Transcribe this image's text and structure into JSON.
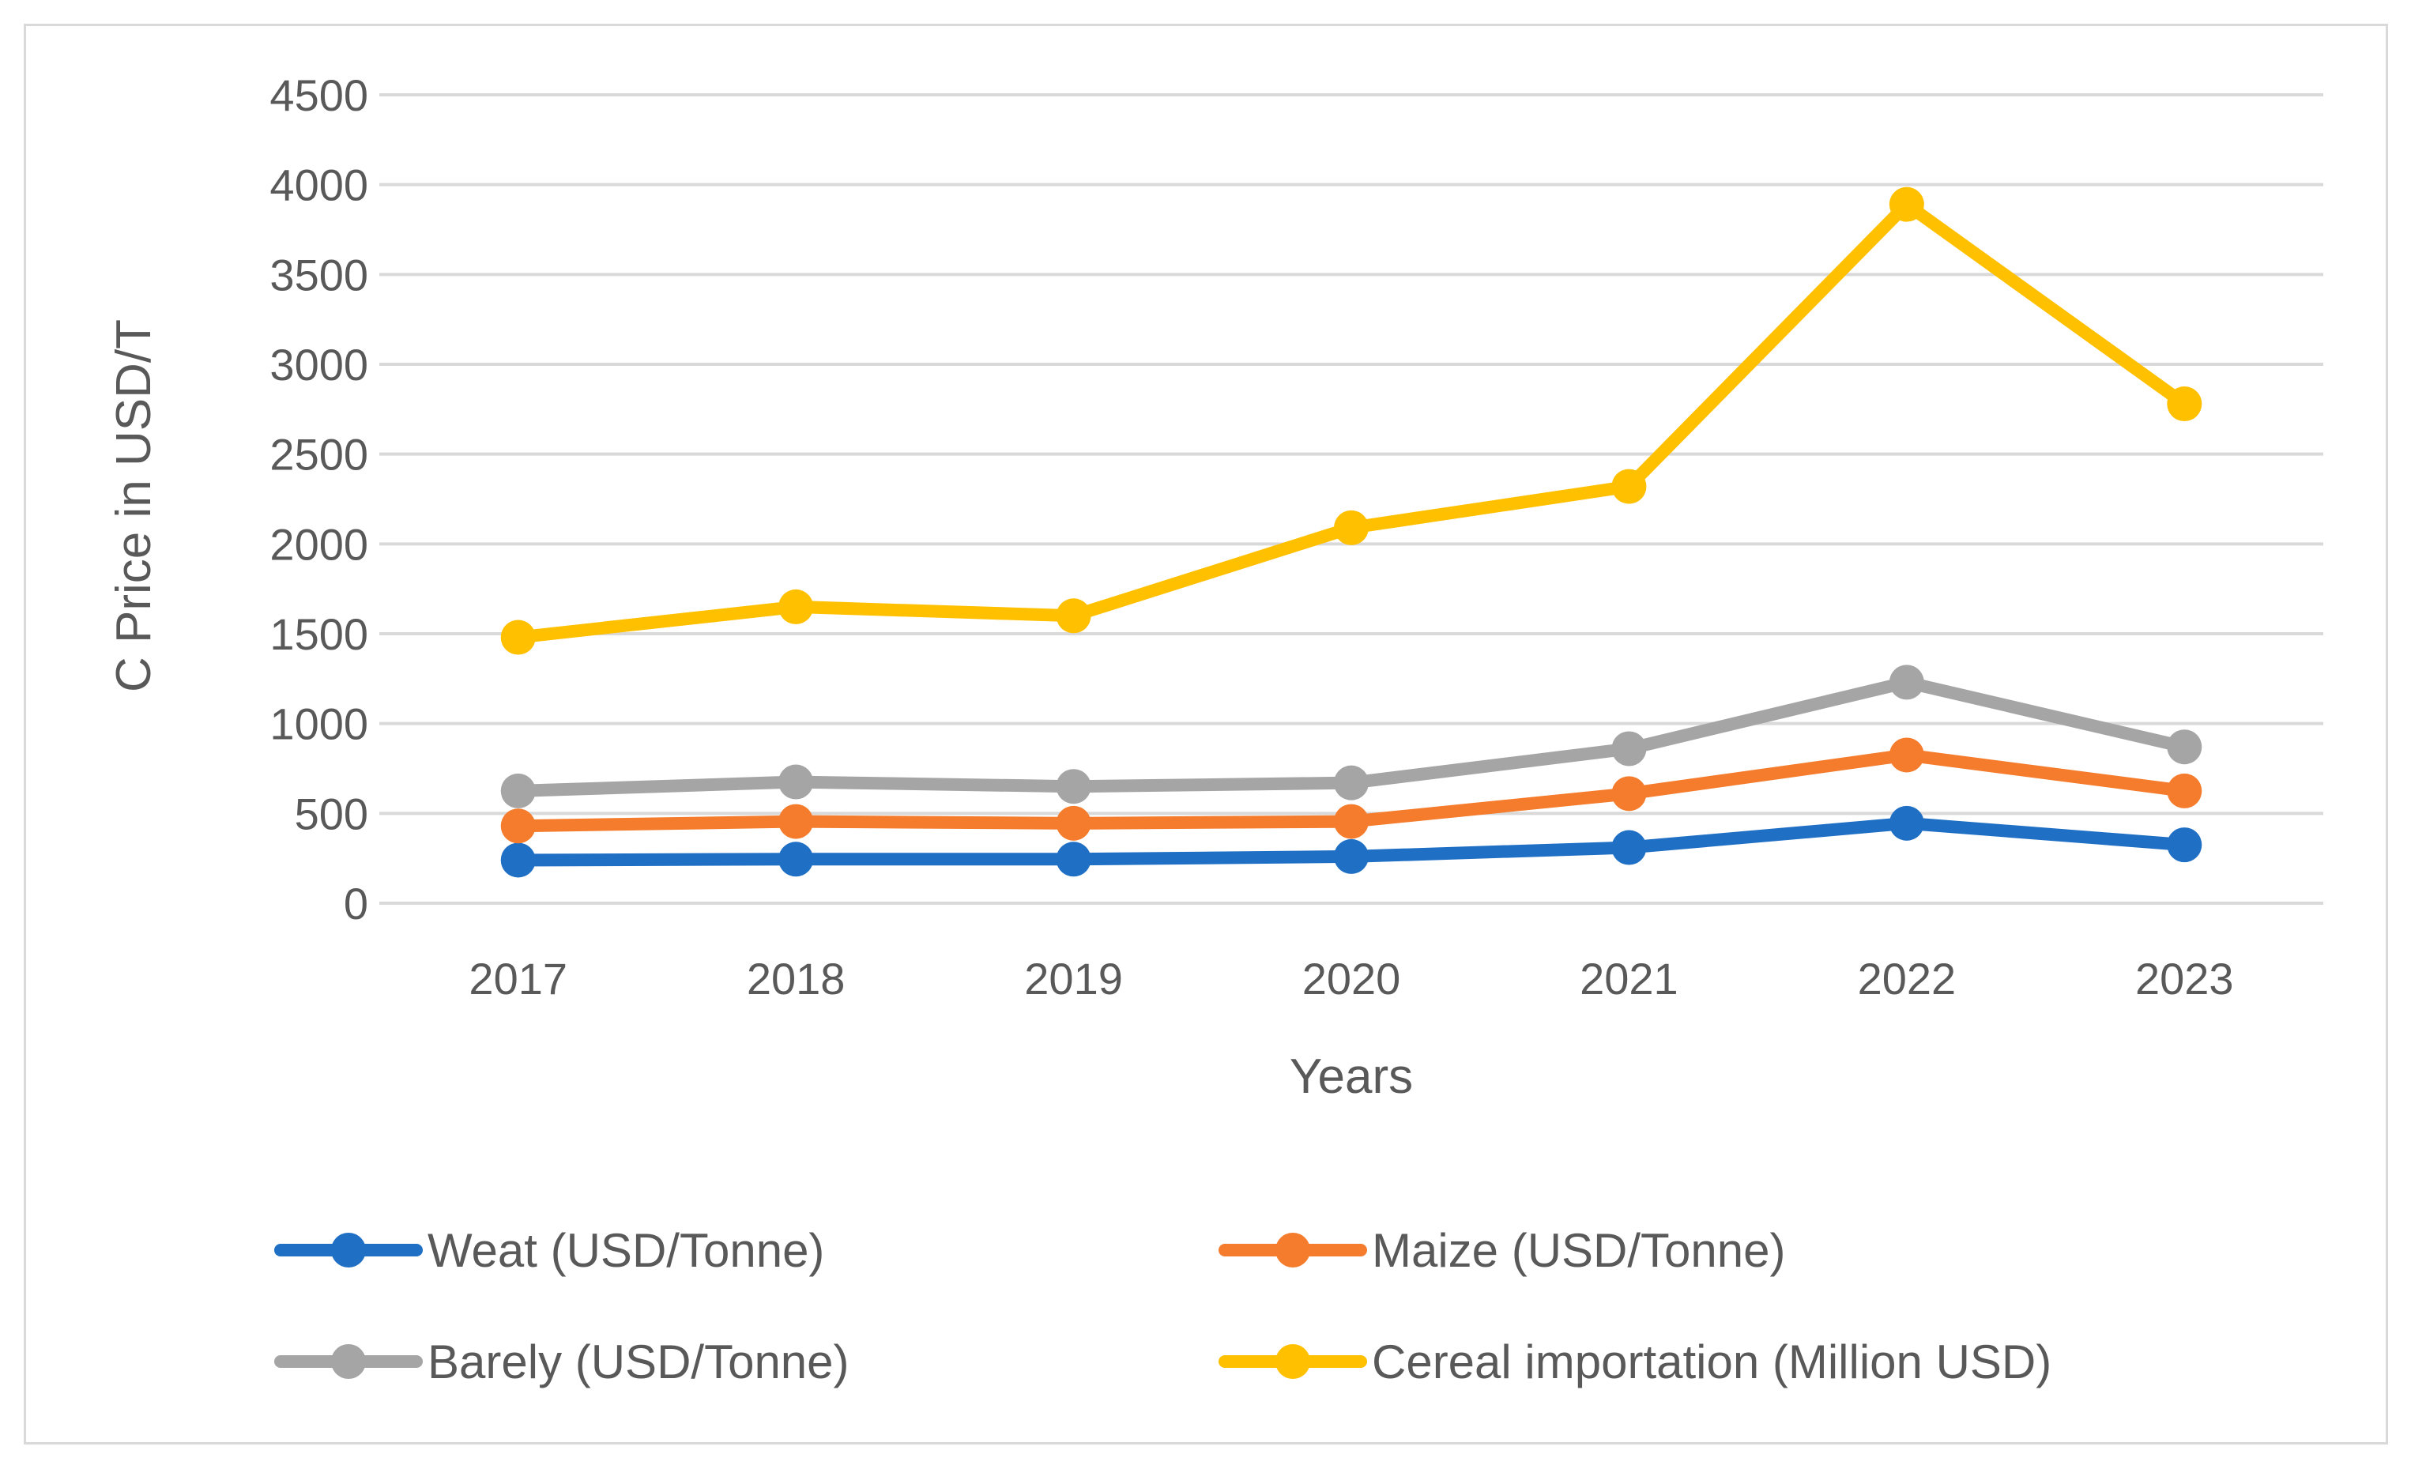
{
  "chart_data": {
    "type": "line",
    "title": "",
    "xlabel": "Years",
    "ylabel": "C Price in USD/T",
    "ylim": [
      0,
      4500
    ],
    "yticks": [
      0,
      500,
      1000,
      1500,
      2000,
      2500,
      3000,
      3500,
      4000,
      4500
    ],
    "categories": [
      "2017",
      "2018",
      "2019",
      "2020",
      "2021",
      "2022",
      "2023"
    ],
    "grid": true,
    "legend_position": "bottom",
    "series": [
      {
        "name": "Weat (USD/Tonne)",
        "color": "#1f6fc5",
        "values": [
          240,
          245,
          245,
          260,
          310,
          445,
          325
        ]
      },
      {
        "name": "Maize (USD/Tonne)",
        "color": "#f47c2c",
        "values": [
          430,
          455,
          445,
          455,
          610,
          825,
          625
        ]
      },
      {
        "name": "Barely (USD/Tonne)",
        "color": "#a5a5a5",
        "values": [
          625,
          675,
          650,
          670,
          860,
          1230,
          870
        ]
      },
      {
        "name": "Cereal importation (Million USD)",
        "color": "#ffc000",
        "values": [
          1480,
          1650,
          1600,
          2090,
          2320,
          3890,
          2780
        ]
      }
    ]
  }
}
